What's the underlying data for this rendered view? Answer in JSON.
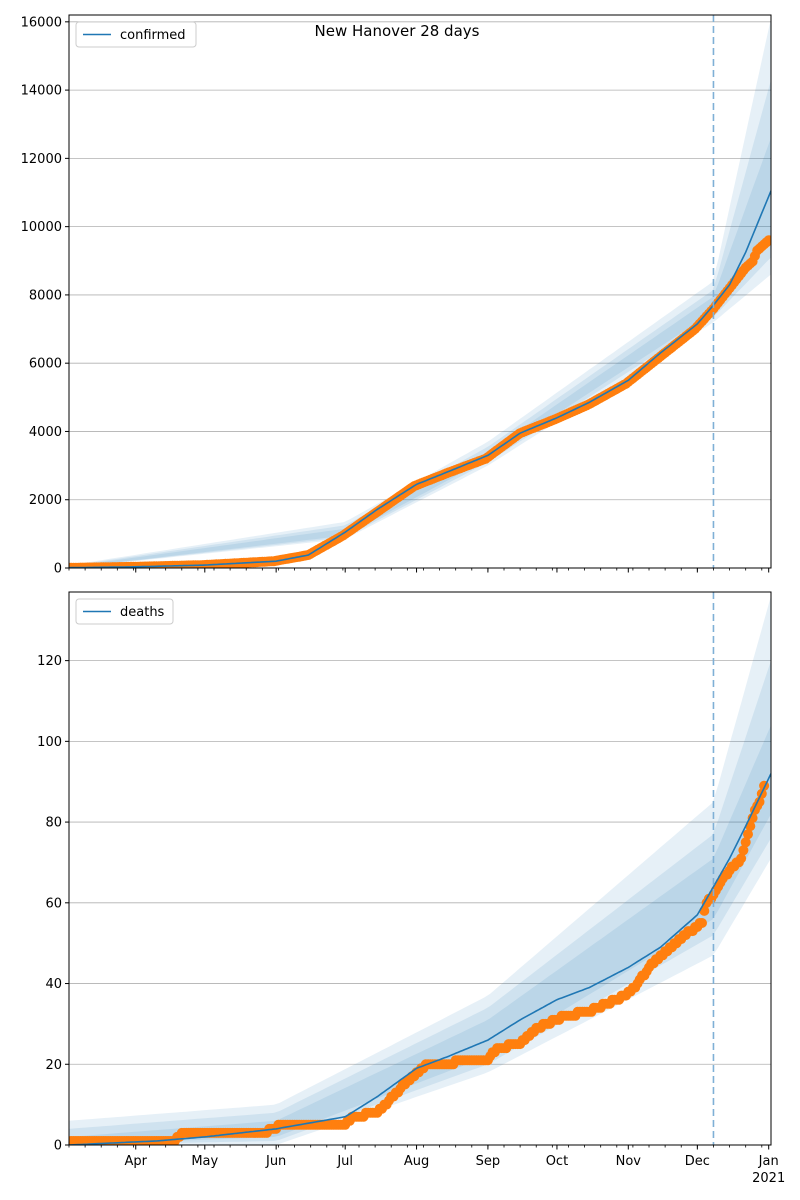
{
  "figure_title": "New Hanover 28 days",
  "colors": {
    "model_line": "#1f77b4",
    "observed": "#ff7f0e",
    "band": "#1f77b4",
    "grid": "#b0b0b0",
    "forecast_start_line": "#7fb0d6"
  },
  "forecast_start": "2020-12-08",
  "x_ticks": [
    {
      "date": "2020-04-01",
      "label": "Apr"
    },
    {
      "date": "2020-05-01",
      "label": "May"
    },
    {
      "date": "2020-06-01",
      "label": "Jun"
    },
    {
      "date": "2020-07-01",
      "label": "Jul"
    },
    {
      "date": "2020-08-01",
      "label": "Aug"
    },
    {
      "date": "2020-09-01",
      "label": "Sep"
    },
    {
      "date": "2020-10-01",
      "label": "Oct"
    },
    {
      "date": "2020-11-01",
      "label": "Nov"
    },
    {
      "date": "2020-12-01",
      "label": "Dec"
    },
    {
      "date": "2021-01-01",
      "label": "Jan"
    }
  ],
  "x_year_label": "2021",
  "chart_data": [
    {
      "type": "line",
      "legend": "confirmed",
      "legend_position": "upper-left",
      "grid": "y",
      "xlim": [
        "2020-03-03",
        "2021-01-02"
      ],
      "ylim": [
        0,
        16200
      ],
      "y_ticks": [
        0,
        2000,
        4000,
        6000,
        8000,
        10000,
        12000,
        14000,
        16000
      ],
      "model": [
        [
          "2020-03-03",
          10
        ],
        [
          "2020-04-01",
          35
        ],
        [
          "2020-05-01",
          85
        ],
        [
          "2020-06-01",
          200
        ],
        [
          "2020-06-15",
          380
        ],
        [
          "2020-07-01",
          1050
        ],
        [
          "2020-07-15",
          1720
        ],
        [
          "2020-08-01",
          2450
        ],
        [
          "2020-08-15",
          2830
        ],
        [
          "2020-09-01",
          3300
        ],
        [
          "2020-09-15",
          3950
        ],
        [
          "2020-10-01",
          4400
        ],
        [
          "2020-10-15",
          4850
        ],
        [
          "2020-11-01",
          5500
        ],
        [
          "2020-11-15",
          6300
        ],
        [
          "2020-12-01",
          7150
        ],
        [
          "2020-12-08",
          7700
        ],
        [
          "2020-12-15",
          8300
        ],
        [
          "2020-12-22",
          9250
        ],
        [
          "2021-01-02",
          11050
        ]
      ],
      "bands": [
        {
          "x": [
            "2020-03-03",
            "2020-07-01",
            "2020-09-01",
            "2020-12-08",
            "2021-01-02"
          ],
          "low": [
            0,
            850,
            3000,
            7200,
            8600
          ],
          "high": [
            80,
            1350,
            3700,
            8400,
            16100
          ]
        },
        {
          "x": [
            "2020-03-03",
            "2020-07-01",
            "2020-09-01",
            "2020-12-08",
            "2021-01-02"
          ],
          "low": [
            0,
            900,
            3100,
            7350,
            9100
          ],
          "high": [
            60,
            1250,
            3550,
            8150,
            14300
          ]
        },
        {
          "x": [
            "2020-03-03",
            "2020-07-01",
            "2020-09-01",
            "2020-12-08",
            "2021-01-02"
          ],
          "low": [
            0,
            950,
            3200,
            7500,
            9700
          ],
          "high": [
            40,
            1150,
            3400,
            7950,
            12600
          ]
        }
      ],
      "observed": [
        [
          "2020-03-03",
          5
        ],
        [
          "2020-03-31",
          35
        ],
        [
          "2020-04-30",
          85
        ],
        [
          "2020-05-31",
          200
        ],
        [
          "2020-06-15",
          380
        ],
        [
          "2020-06-30",
          950
        ],
        [
          "2020-07-15",
          1650
        ],
        [
          "2020-07-31",
          2400
        ],
        [
          "2020-08-15",
          2800
        ],
        [
          "2020-08-31",
          3200
        ],
        [
          "2020-09-15",
          3950
        ],
        [
          "2020-09-30",
          4350
        ],
        [
          "2020-10-15",
          4800
        ],
        [
          "2020-10-31",
          5400
        ],
        [
          "2020-11-15",
          6200
        ],
        [
          "2020-11-30",
          7000
        ],
        [
          "2020-12-08",
          7600
        ],
        [
          "2020-12-15",
          8200
        ],
        [
          "2020-12-22",
          8800
        ],
        [
          "2020-12-25",
          8980
        ],
        [
          "2020-12-27",
          9300
        ],
        [
          "2021-01-01",
          9600
        ]
      ]
    },
    {
      "type": "line",
      "legend": "deaths",
      "legend_position": "upper-left",
      "grid": "y",
      "xlim": [
        "2020-03-03",
        "2021-01-02"
      ],
      "ylim": [
        0,
        137
      ],
      "y_ticks": [
        0,
        20,
        40,
        60,
        80,
        100,
        120
      ],
      "model": [
        [
          "2020-03-03",
          0
        ],
        [
          "2020-04-10",
          1
        ],
        [
          "2020-05-01",
          2
        ],
        [
          "2020-06-01",
          4
        ],
        [
          "2020-07-01",
          7
        ],
        [
          "2020-07-15",
          12
        ],
        [
          "2020-08-01",
          19
        ],
        [
          "2020-08-15",
          22
        ],
        [
          "2020-09-01",
          26
        ],
        [
          "2020-09-15",
          31
        ],
        [
          "2020-10-01",
          36
        ],
        [
          "2020-10-15",
          39
        ],
        [
          "2020-11-01",
          44
        ],
        [
          "2020-11-15",
          49
        ],
        [
          "2020-12-01",
          57
        ],
        [
          "2020-12-08",
          64
        ],
        [
          "2020-12-15",
          71
        ],
        [
          "2020-12-22",
          79
        ],
        [
          "2021-01-02",
          92
        ]
      ],
      "bands": [
        {
          "x": [
            "2020-03-03",
            "2020-06-01",
            "2020-09-01",
            "2020-12-08",
            "2021-01-02"
          ],
          "low": [
            0,
            0,
            18,
            47,
            71
          ],
          "high": [
            6,
            10,
            37,
            85,
            136
          ]
        },
        {
          "x": [
            "2020-03-03",
            "2020-06-01",
            "2020-09-01",
            "2020-12-08",
            "2021-01-02"
          ],
          "low": [
            0,
            1,
            20,
            52,
            76
          ],
          "high": [
            4,
            8,
            34,
            77,
            120
          ]
        },
        {
          "x": [
            "2020-03-03",
            "2020-06-01",
            "2020-09-01",
            "2020-12-08",
            "2021-01-02"
          ],
          "low": [
            0,
            2,
            22,
            56,
            82
          ],
          "high": [
            2,
            6,
            31,
            71,
            104
          ]
        }
      ],
      "observed": [
        [
          "2020-03-03",
          0
        ],
        [
          "2020-03-05",
          1
        ],
        [
          "2020-04-18",
          1
        ],
        [
          "2020-04-20",
          2
        ],
        [
          "2020-04-22",
          3
        ],
        [
          "2020-05-28",
          3
        ],
        [
          "2020-05-30",
          4
        ],
        [
          "2020-06-05",
          5
        ],
        [
          "2020-07-01",
          5
        ],
        [
          "2020-07-04",
          7
        ],
        [
          "2020-07-15",
          8
        ],
        [
          "2020-07-20",
          11
        ],
        [
          "2020-07-25",
          14
        ],
        [
          "2020-07-31",
          17
        ],
        [
          "2020-08-05",
          20
        ],
        [
          "2020-08-15",
          20
        ],
        [
          "2020-08-20",
          21
        ],
        [
          "2020-09-01",
          21
        ],
        [
          "2020-09-05",
          24
        ],
        [
          "2020-09-15",
          25
        ],
        [
          "2020-09-22",
          29
        ],
        [
          "2020-10-05",
          32
        ],
        [
          "2020-10-15",
          33
        ],
        [
          "2020-10-22",
          35
        ],
        [
          "2020-10-31",
          37
        ],
        [
          "2020-11-05",
          40
        ],
        [
          "2020-11-10",
          44
        ],
        [
          "2020-11-15",
          47
        ],
        [
          "2020-11-22",
          50
        ],
        [
          "2020-11-28",
          53
        ],
        [
          "2020-12-03",
          55
        ],
        [
          "2020-12-05",
          60
        ],
        [
          "2020-12-08",
          62
        ],
        [
          "2020-12-12",
          66
        ],
        [
          "2020-12-15",
          68
        ],
        [
          "2020-12-20",
          71
        ],
        [
          "2020-12-22",
          75
        ],
        [
          "2020-12-26",
          83
        ],
        [
          "2020-12-28",
          85
        ],
        [
          "2020-12-30",
          89
        ]
      ]
    }
  ]
}
